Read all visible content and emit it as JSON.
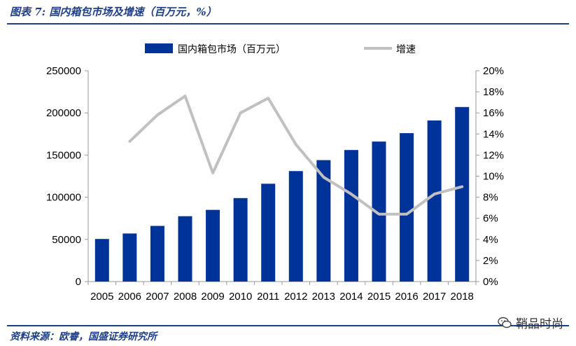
{
  "header": {
    "title": "图表 7:  国内箱包市场及增速（百万元，%）"
  },
  "footer": {
    "source": "资料来源：欧睿，国盛证券研究所",
    "watermark": "鞘品时尚"
  },
  "chart_data": {
    "type": "bar",
    "categories": [
      "2005",
      "2006",
      "2007",
      "2008",
      "2009",
      "2010",
      "2011",
      "2012",
      "2013",
      "2014",
      "2015",
      "2016",
      "2017",
      "2018"
    ],
    "series": [
      {
        "name": "国内箱包市场（百万元）",
        "type": "bar",
        "axis": "left",
        "color": "#003399",
        "values": [
          50500,
          57000,
          66000,
          77500,
          85000,
          99000,
          116000,
          131000,
          144000,
          156000,
          166000,
          176000,
          191000,
          207000
        ]
      },
      {
        "name": "增速",
        "type": "line",
        "axis": "right",
        "color": "#c0c0c0",
        "values": [
          null,
          13.3,
          15.8,
          17.6,
          10.3,
          16.0,
          17.4,
          13.0,
          9.9,
          8.3,
          6.4,
          6.4,
          8.3,
          9.0
        ]
      }
    ],
    "y_left": {
      "min": 0,
      "max": 250000,
      "ticks": [
        "0",
        "50000",
        "100000",
        "150000",
        "200000",
        "250000"
      ]
    },
    "y_right": {
      "min": 0,
      "max": 20,
      "ticks": [
        "0%",
        "2%",
        "4%",
        "6%",
        "8%",
        "10%",
        "12%",
        "14%",
        "16%",
        "18%",
        "20%"
      ]
    },
    "legend_position": "top",
    "grid": false
  }
}
